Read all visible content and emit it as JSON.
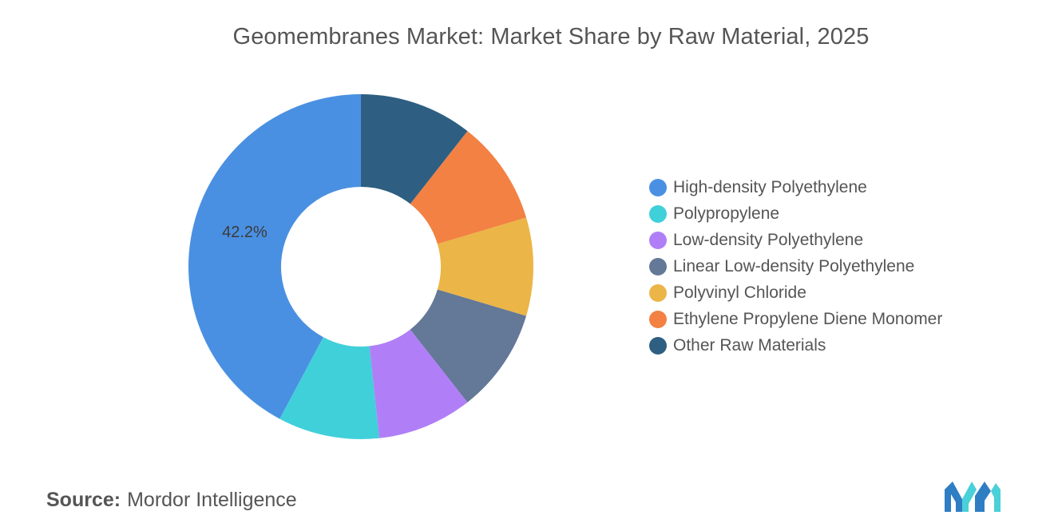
{
  "title": "Geomembranes Market: Market Share by Raw Material, 2025",
  "source": {
    "label": "Source:",
    "value": "Mordor Intelligence"
  },
  "logo": {
    "icon": "mordor-intelligence-logo-icon",
    "colors": [
      "#2f7ec4",
      "#4ad0d8"
    ]
  },
  "chart_data": {
    "type": "pie",
    "variant": "donut",
    "title": "Geomembranes Market: Market Share by Raw Material, 2025",
    "legend_position": "right",
    "start_angle_deg": 90,
    "direction": "counterclockwise",
    "unit": "%",
    "series": [
      {
        "name": "High-density Polyethylene",
        "value": 42.2,
        "label": "42.2%",
        "color": "#4a90e2"
      },
      {
        "name": "Polypropylene",
        "value": 9.5,
        "label": "",
        "color": "#40d0da"
      },
      {
        "name": "Low-density Polyethylene",
        "value": 8.9,
        "label": "",
        "color": "#b07ff7"
      },
      {
        "name": "Linear Low-density Polyethylene",
        "value": 9.8,
        "label": "",
        "color": "#647897"
      },
      {
        "name": "Polyvinyl Chloride",
        "value": 9.2,
        "label": "",
        "color": "#ebb547"
      },
      {
        "name": "Ethylene Propylene Diene Monomer",
        "value": 9.8,
        "label": "",
        "color": "#f28143"
      },
      {
        "name": "Other Raw Materials",
        "value": 10.6,
        "label": "",
        "color": "#2e5f82"
      }
    ]
  }
}
